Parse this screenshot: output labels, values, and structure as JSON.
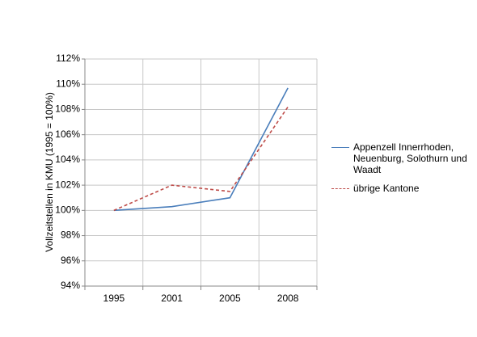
{
  "chart_data": {
    "type": "line",
    "y_label": "Vollzeitstellen in KMU (1995 = 100%)",
    "categories": [
      "1995",
      "2001",
      "2005",
      "2008"
    ],
    "series": [
      {
        "name": "Appenzell Innerrhoden, Neuenburg, Solothurn und Waadt",
        "color": "#4a7ebb",
        "dash": "solid",
        "values": [
          100,
          100.3,
          101,
          109.7
        ]
      },
      {
        "name": "übrige Kantone",
        "color": "#be4b48",
        "dash": "dashed",
        "values": [
          100,
          102,
          101.5,
          108.2
        ]
      }
    ],
    "ylim": [
      94,
      112
    ],
    "yticks": [
      {
        "value": 94,
        "label": "94%"
      },
      {
        "value": 96,
        "label": "96%"
      },
      {
        "value": 98,
        "label": "98%"
      },
      {
        "value": 100,
        "label": "100%"
      },
      {
        "value": 102,
        "label": "102%"
      },
      {
        "value": 104,
        "label": "104%"
      },
      {
        "value": 106,
        "label": "106%"
      },
      {
        "value": 108,
        "label": "108%"
      },
      {
        "value": 110,
        "label": "110%"
      },
      {
        "value": 112,
        "label": "112%"
      }
    ],
    "grid": true,
    "legend": "right"
  }
}
